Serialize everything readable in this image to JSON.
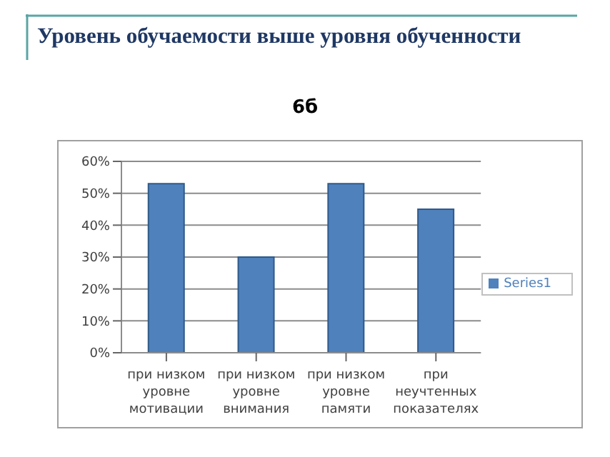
{
  "chart_data": {
    "type": "bar",
    "title": "Уровень обучаемости выше уровня обученности",
    "subtitle": "6б",
    "categories": [
      "при низком уровне мотивации",
      "при низком уровне внимания",
      "при низком уровне памяти",
      "при неучтенных показателях"
    ],
    "series": [
      {
        "name": "Series1",
        "color": "#4f81bd",
        "values": [
          53,
          30,
          53,
          45
        ]
      }
    ],
    "ylim": [
      0,
      60
    ],
    "yticks": [
      {
        "value": 0,
        "label": "0%"
      },
      {
        "value": 10,
        "label": "10%"
      },
      {
        "value": 20,
        "label": "20%"
      },
      {
        "value": 30,
        "label": "30%"
      },
      {
        "value": 40,
        "label": "40%"
      },
      {
        "value": 50,
        "label": "50%"
      },
      {
        "value": 60,
        "label": "60%"
      }
    ],
    "grid": "y",
    "legend": "right"
  }
}
